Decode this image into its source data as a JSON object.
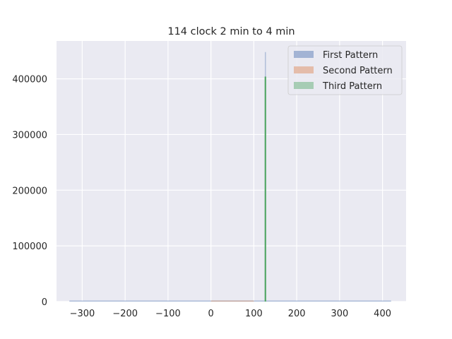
{
  "chart_data": {
    "type": "bar",
    "title": "114 clock 2 min to 4 min",
    "xlabel": "",
    "ylabel": "",
    "xlim": [
      -360,
      455
    ],
    "ylim": [
      0,
      468000
    ],
    "x_ticks": [
      -300,
      -200,
      -100,
      0,
      100,
      200,
      300,
      400
    ],
    "x_tick_labels": [
      "−300",
      "−200",
      "−100",
      "0",
      "100",
      "200",
      "300",
      "400"
    ],
    "y_ticks": [
      0,
      100000,
      200000,
      300000,
      400000
    ],
    "y_tick_labels": [
      "0",
      "100000",
      "200000",
      "300000",
      "400000"
    ],
    "grid": true,
    "legend_position": "top-right",
    "series": [
      {
        "name": "First Pattern",
        "color": "#4c72b0",
        "range": [
          -330,
          420
        ],
        "bars": [
          {
            "x": 127,
            "value": 448000
          }
        ]
      },
      {
        "name": "Second Pattern",
        "color": "#dd8452",
        "range": [
          0,
          100
        ],
        "bars": [
          {
            "x": 127,
            "value": 404000
          }
        ]
      },
      {
        "name": "Third Pattern",
        "color": "#55a868",
        "range": [
          126,
          127
        ],
        "bars": [
          {
            "x": 127,
            "value": 404000
          }
        ]
      }
    ]
  }
}
